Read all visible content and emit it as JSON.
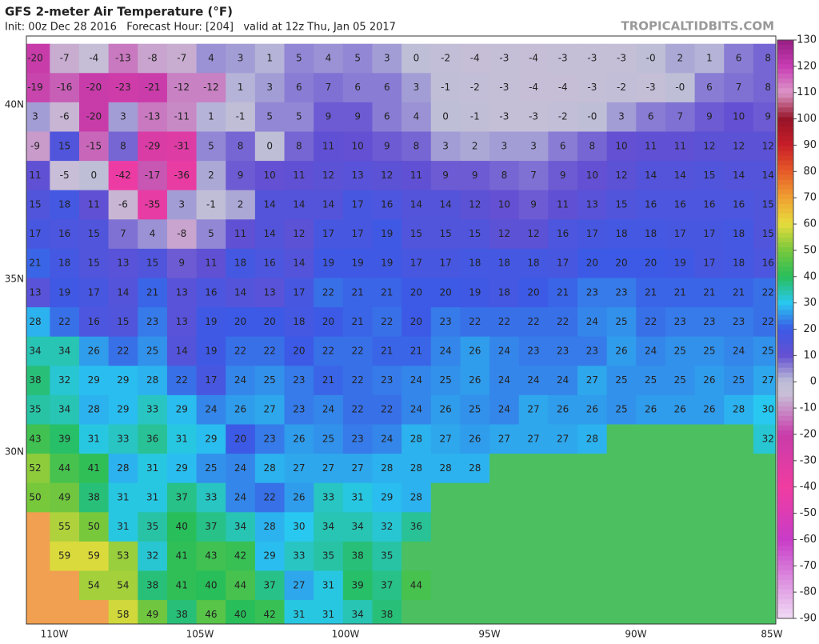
{
  "header": {
    "title": "GFS 2-meter Air Temperature (°F)",
    "subtitle": "Init: 00z Dec 28 2016   Forecast Hour: [204]   valid at 12z Thu, Jan 05 2017",
    "brand": "TROPICALTIDBITS.COM"
  },
  "map": {
    "lat_labels": [
      "40N",
      "35N",
      "30N"
    ],
    "lon_labels": [
      "110W",
      "105W",
      "100W",
      "95W",
      "90W",
      "85W"
    ],
    "grid": [
      [
        -20,
        -7,
        -4,
        -13,
        -8,
        -7,
        4,
        3,
        1,
        5,
        4,
        5,
        3,
        0,
        -2,
        -4,
        -3,
        -4,
        -3,
        -3,
        -3,
        {
          "value": 0,
          "label": "-0"
        },
        2,
        1,
        6,
        8
      ],
      [
        -19,
        -16,
        -20,
        -23,
        -21,
        -12,
        -12,
        1,
        3,
        6,
        7,
        6,
        6,
        3,
        -1,
        -2,
        -3,
        -4,
        -4,
        -3,
        -2,
        -3,
        {
          "value": 0,
          "label": "-0"
        },
        6,
        7,
        8
      ],
      [
        3,
        -6,
        -20,
        3,
        -13,
        -11,
        1,
        -1,
        5,
        5,
        9,
        9,
        6,
        4,
        0,
        -1,
        -3,
        -3,
        -2,
        {
          "value": 0,
          "label": "-0"
        },
        3,
        6,
        7,
        9,
        10,
        9
      ],
      [
        -9,
        15,
        -15,
        8,
        -29,
        -31,
        5,
        8,
        0,
        8,
        11,
        10,
        9,
        8,
        3,
        2,
        3,
        3,
        6,
        8,
        10,
        11,
        11,
        12,
        12,
        12
      ],
      [
        11,
        -5,
        0,
        -42,
        -17,
        -36,
        2,
        9,
        10,
        11,
        12,
        13,
        12,
        11,
        9,
        9,
        8,
        7,
        9,
        10,
        12,
        14,
        14,
        15,
        14,
        14
      ],
      [
        15,
        18,
        11,
        -6,
        -35,
        3,
        -1,
        2,
        14,
        14,
        14,
        17,
        16,
        14,
        14,
        12,
        10,
        9,
        11,
        13,
        15,
        16,
        16,
        16,
        16,
        15
      ],
      [
        17,
        16,
        15,
        7,
        4,
        -8,
        5,
        11,
        14,
        12,
        17,
        17,
        19,
        15,
        15,
        15,
        12,
        12,
        16,
        17,
        18,
        18,
        17,
        17,
        18,
        15
      ],
      [
        21,
        18,
        15,
        13,
        15,
        9,
        11,
        18,
        16,
        14,
        19,
        19,
        19,
        17,
        17,
        18,
        18,
        18,
        17,
        20,
        20,
        20,
        19,
        17,
        18,
        16
      ],
      [
        13,
        19,
        17,
        14,
        21,
        13,
        16,
        14,
        13,
        17,
        22,
        21,
        21,
        20,
        20,
        19,
        18,
        20,
        21,
        23,
        23,
        21,
        21,
        21,
        21,
        22
      ],
      [
        28,
        22,
        16,
        15,
        23,
        13,
        19,
        20,
        20,
        18,
        20,
        21,
        22,
        20,
        23,
        22,
        22,
        22,
        22,
        24,
        25,
        22,
        23,
        23,
        23,
        22
      ],
      [
        34,
        34,
        26,
        22,
        25,
        14,
        19,
        22,
        22,
        20,
        22,
        22,
        21,
        21,
        24,
        26,
        24,
        23,
        23,
        23,
        26,
        24,
        25,
        25,
        24,
        25
      ],
      [
        38,
        32,
        29,
        29,
        28,
        22,
        17,
        24,
        25,
        23,
        21,
        22,
        23,
        24,
        25,
        26,
        24,
        24,
        24,
        27,
        25,
        25,
        25,
        26,
        25,
        27
      ],
      [
        35,
        34,
        28,
        29,
        33,
        29,
        24,
        26,
        27,
        23,
        24,
        22,
        22,
        24,
        26,
        25,
        24,
        27,
        26,
        26,
        25,
        26,
        26,
        26,
        28,
        30
      ],
      [
        43,
        39,
        31,
        33,
        36,
        31,
        29,
        20,
        23,
        26,
        25,
        23,
        24,
        28,
        27,
        26,
        27,
        27,
        27,
        28,
        null,
        null,
        null,
        null,
        null,
        32
      ],
      [
        52,
        44,
        41,
        28,
        31,
        29,
        25,
        24,
        28,
        27,
        27,
        27,
        28,
        28,
        28,
        28,
        null,
        null,
        null,
        null,
        null,
        null,
        null,
        null,
        null,
        null
      ],
      [
        50,
        49,
        38,
        31,
        31,
        37,
        33,
        24,
        22,
        26,
        33,
        31,
        29,
        28,
        null,
        null,
        null,
        null,
        null,
        null,
        null,
        null,
        null,
        null,
        null,
        null
      ],
      [
        null,
        55,
        50,
        31,
        35,
        40,
        37,
        34,
        28,
        30,
        34,
        34,
        32,
        36,
        null,
        null,
        null,
        null,
        null,
        null,
        null,
        null,
        null,
        null,
        null,
        null
      ],
      [
        null,
        59,
        59,
        53,
        32,
        41,
        43,
        42,
        29,
        33,
        35,
        38,
        35,
        null,
        null,
        null,
        null,
        null,
        null,
        null,
        null,
        null,
        null,
        null,
        null,
        null
      ],
      [
        null,
        null,
        54,
        54,
        38,
        41,
        40,
        44,
        37,
        27,
        31,
        39,
        37,
        44,
        null,
        null,
        null,
        null,
        null,
        null,
        null,
        null,
        null,
        null,
        null,
        null
      ],
      [
        null,
        null,
        null,
        58,
        49,
        38,
        46,
        40,
        42,
        31,
        31,
        34,
        38,
        null,
        null,
        null,
        null,
        null,
        null,
        null,
        null,
        null,
        null,
        null,
        null,
        null
      ]
    ]
  },
  "colorbar": {
    "ticks": [
      130,
      120,
      110,
      100,
      90,
      80,
      70,
      60,
      50,
      40,
      30,
      20,
      10,
      0,
      -10,
      -20,
      -30,
      -40,
      -50,
      -60,
      -70,
      -80,
      -90
    ]
  }
}
